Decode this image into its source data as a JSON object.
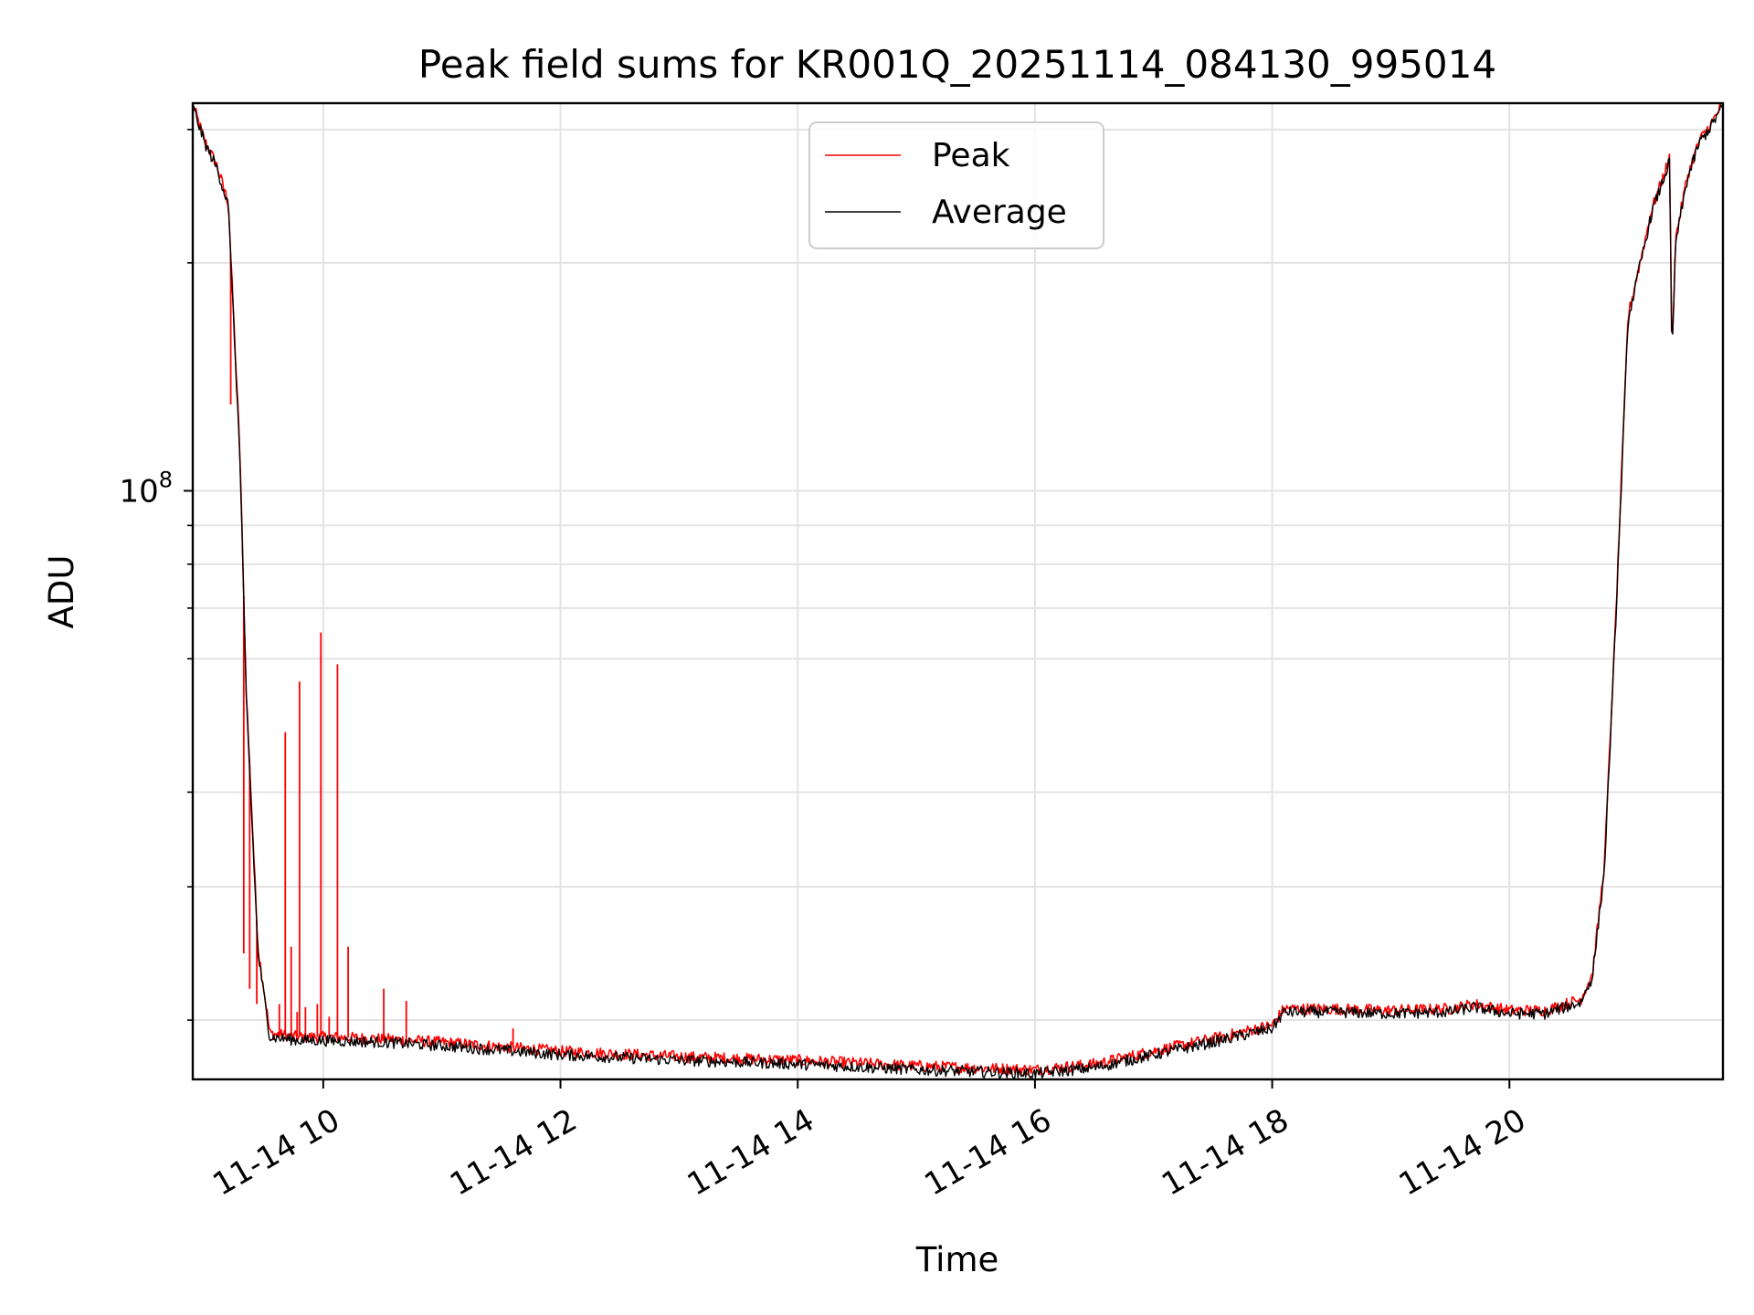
{
  "chart_data": {
    "type": "line",
    "title": "Peak field sums for KR001Q_20251114_084130_995014",
    "xlabel": "Time",
    "ylabel": "ADU",
    "yscale": "log",
    "xlim": [
      8.9,
      21.8
    ],
    "ylim": [
      16700000,
      325000000
    ],
    "x_ticks": [
      {
        "value": 10,
        "label": "11-14 10"
      },
      {
        "value": 12,
        "label": "11-14 12"
      },
      {
        "value": 14,
        "label": "11-14 14"
      },
      {
        "value": 16,
        "label": "11-14 16"
      },
      {
        "value": 18,
        "label": "11-14 18"
      },
      {
        "value": 20,
        "label": "11-14 20"
      }
    ],
    "y_major_ticks": [
      {
        "value": 100000000,
        "base": "10",
        "exp": "8"
      }
    ],
    "y_minor_ticks": [
      20000000,
      30000000,
      40000000,
      60000000,
      70000000,
      80000000,
      90000000,
      200000000,
      300000000
    ],
    "grid": true,
    "legend_position": "upper center",
    "legend_entries": [
      "Peak",
      "Average"
    ],
    "series": [
      {
        "name": "Peak",
        "color": "#ff0000",
        "x": [
          8.9,
          9.0,
          9.1,
          9.2,
          9.3,
          9.35,
          9.45,
          9.55,
          9.8,
          10.0,
          10.5,
          11.0,
          12.0,
          13.0,
          14.0,
          15.0,
          16.0,
          16.5,
          17.0,
          17.5,
          18.0,
          18.1,
          18.5,
          19.0,
          19.5,
          19.7,
          20.0,
          20.3,
          20.6,
          20.7,
          20.8,
          20.9,
          21.0,
          21.1,
          21.2,
          21.35,
          21.37,
          21.4,
          21.5,
          21.6,
          21.7,
          21.8
        ],
        "y": [
          324000000,
          290000000,
          270000000,
          240000000,
          110000000,
          55000000,
          25000000,
          19200000,
          19000000,
          19000000,
          18900000,
          18700000,
          18200000,
          17900000,
          17700000,
          17400000,
          17200000,
          17500000,
          18200000,
          18900000,
          19700000,
          20700000,
          20700000,
          20600000,
          20700000,
          21000000,
          20600000,
          20600000,
          21300000,
          23000000,
          32000000,
          70000000,
          170000000,
          200000000,
          235000000,
          275000000,
          150000000,
          215000000,
          260000000,
          290000000,
          305000000,
          325000000
        ],
        "spikes": [
          {
            "x": 9.22,
            "y": 130000000
          },
          {
            "x": 9.33,
            "y": 24500000
          },
          {
            "x": 9.38,
            "y": 22000000
          },
          {
            "x": 9.44,
            "y": 21000000
          },
          {
            "x": 9.63,
            "y": 21000000
          },
          {
            "x": 9.68,
            "y": 48000000
          },
          {
            "x": 9.73,
            "y": 25000000
          },
          {
            "x": 9.78,
            "y": 20500000
          },
          {
            "x": 9.8,
            "y": 56000000
          },
          {
            "x": 9.85,
            "y": 20800000
          },
          {
            "x": 9.95,
            "y": 21000000
          },
          {
            "x": 9.98,
            "y": 65000000
          },
          {
            "x": 10.05,
            "y": 20200000
          },
          {
            "x": 10.12,
            "y": 59000000
          },
          {
            "x": 10.21,
            "y": 25000000
          },
          {
            "x": 10.51,
            "y": 22000000
          },
          {
            "x": 10.7,
            "y": 21200000
          },
          {
            "x": 11.6,
            "y": 19500000
          }
        ]
      },
      {
        "name": "Average",
        "color": "#000000",
        "x": [
          8.9,
          9.0,
          9.1,
          9.2,
          9.3,
          9.35,
          9.45,
          9.55,
          9.8,
          10.0,
          10.5,
          11.0,
          12.0,
          13.0,
          14.0,
          15.0,
          16.0,
          16.5,
          17.0,
          17.5,
          18.0,
          18.1,
          18.5,
          19.0,
          19.5,
          19.7,
          20.0,
          20.3,
          20.6,
          20.7,
          20.8,
          20.9,
          21.0,
          21.1,
          21.2,
          21.35,
          21.37,
          21.4,
          21.5,
          21.6,
          21.7,
          21.8
        ],
        "y": [
          322000000,
          288000000,
          268000000,
          238000000,
          108000000,
          54000000,
          24500000,
          19000000,
          18800000,
          18800000,
          18700000,
          18500000,
          18000000,
          17700000,
          17500000,
          17200000,
          17000000,
          17300000,
          18000000,
          18700000,
          19500000,
          20500000,
          20500000,
          20400000,
          20500000,
          20800000,
          20400000,
          20400000,
          21100000,
          22800000,
          31500000,
          69000000,
          168000000,
          198000000,
          233000000,
          272000000,
          148000000,
          212000000,
          258000000,
          288000000,
          303000000,
          322000000
        ]
      }
    ]
  }
}
